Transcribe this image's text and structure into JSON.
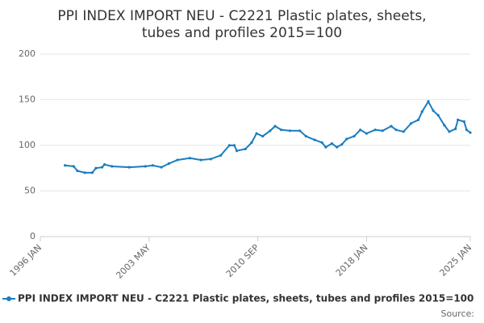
{
  "chart_data": {
    "type": "line",
    "title": [
      "PPI INDEX IMPORT NEU - C2221 Plastic plates, sheets,",
      "tubes and profiles 2015=100"
    ],
    "x": [
      "1997 SEP",
      "1998 APR",
      "1998 JUL",
      "1999 JAN",
      "1999 JUL",
      "1999 OCT",
      "2000 MAR",
      "2000 MAY",
      "2000 NOV",
      "2002 JAN",
      "2003 FEB",
      "2003 AUG",
      "2004 MAR",
      "2004 SEP",
      "2005 APR",
      "2006 FEB",
      "2006 NOV",
      "2007 JUL",
      "2008 MAR",
      "2008 OCT",
      "2009 FEB",
      "2009 APR",
      "2009 NOV",
      "2010 APR",
      "2010 AUG",
      "2011 JAN",
      "2011 JUL",
      "2011 NOV",
      "2012 APR",
      "2012 NOV",
      "2013 JUL",
      "2013 DEC",
      "2014 JUL",
      "2015 JAN",
      "2015 APR",
      "2015 SEP",
      "2016 JAN",
      "2016 MAY",
      "2016 SEP",
      "2017 MAR",
      "2017 AUG",
      "2018 JAN",
      "2018 AUG",
      "2019 FEB",
      "2019 SEP",
      "2020 JAN",
      "2020 JUL",
      "2021 JAN",
      "2021 JUL",
      "2021 OCT",
      "2022 MAR",
      "2022 JUL",
      "2022 NOV",
      "2023 APR",
      "2023 AUG",
      "2024 JAN",
      "2024 MAR",
      "2024 AUG",
      "2024 OCT",
      "2025 JAN"
    ],
    "series": [
      {
        "name": "PPI INDEX IMPORT NEU - C2221 Plastic plates, sheets, tubes and profiles 2015=100",
        "color": "#1a7dc0",
        "values": [
          78,
          77,
          72,
          70,
          70,
          75,
          76,
          79,
          77,
          76,
          77,
          78,
          76,
          80,
          84,
          86,
          84,
          85,
          89,
          100,
          100,
          94,
          96,
          103,
          113,
          110,
          116,
          121,
          117,
          116,
          116,
          110,
          106,
          103,
          98,
          102,
          98,
          101,
          107,
          110,
          117,
          113,
          117,
          116,
          121,
          117,
          115,
          124,
          128,
          137,
          148,
          138,
          133,
          122,
          115,
          118,
          128,
          126,
          117,
          114
        ]
      }
    ],
    "xlim": [
      "1996 JAN",
      "2025 JAN"
    ],
    "xticks": [
      "1996 JAN",
      "2003 MAY",
      "2010 SEP",
      "2018 JAN",
      "2025 JAN"
    ],
    "ylim": [
      0,
      200
    ],
    "yticks": [
      0,
      50,
      100,
      150,
      200
    ],
    "grid": true,
    "source": "Source:"
  }
}
